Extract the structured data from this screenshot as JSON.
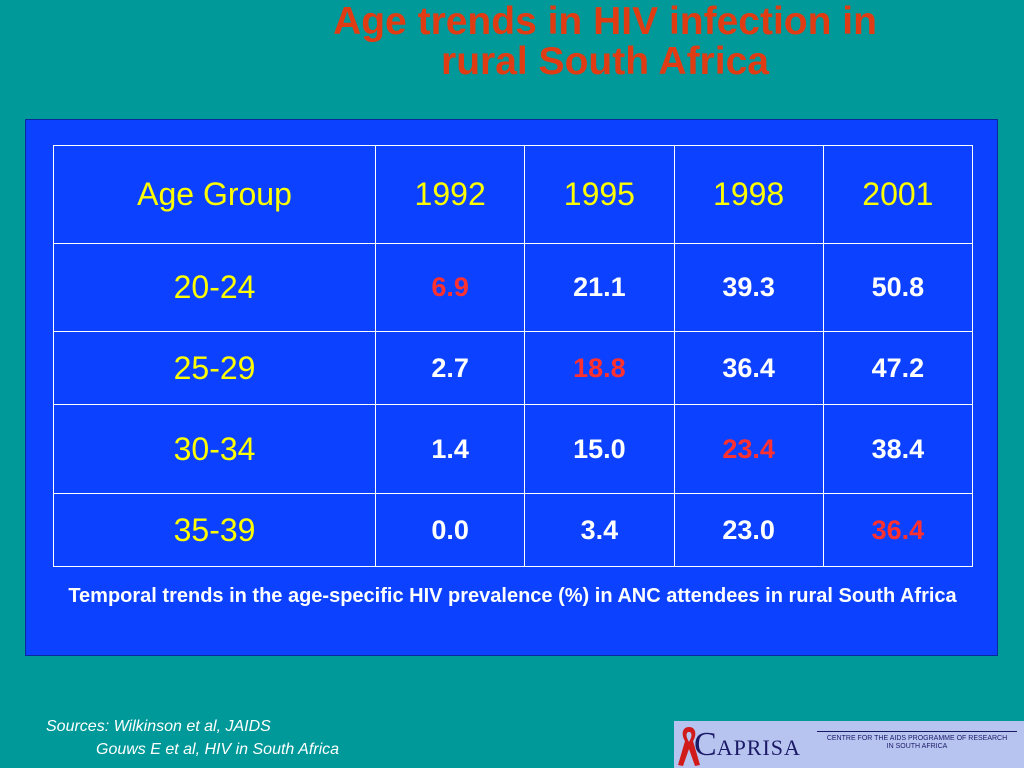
{
  "title_line1": "Age trends in HIV infection in",
  "title_line2": "rural South Africa",
  "table": {
    "headers": [
      "Age Group",
      "1992",
      "1995",
      "1998",
      "2001"
    ],
    "rows": [
      {
        "age": "20-24",
        "values": [
          "6.9",
          "21.1",
          "39.3",
          "50.8"
        ],
        "highlight_index": 0
      },
      {
        "age": "25-29",
        "values": [
          "2.7",
          "18.8",
          "36.4",
          "47.2"
        ],
        "highlight_index": 1
      },
      {
        "age": "30-34",
        "values": [
          "1.4",
          "15.0",
          "23.4",
          "38.4"
        ],
        "highlight_index": 2
      },
      {
        "age": "35-39",
        "values": [
          "0.0",
          "3.4",
          "23.0",
          "36.4"
        ],
        "highlight_index": 3
      }
    ]
  },
  "caption": "Temporal trends in the age-specific HIV prevalence (%) in ANC attendees in rural South Africa",
  "sources": {
    "line1": "Sources: Wilkinson et al, JAIDS",
    "line2": "Gouws E et al, HIV in South Africa"
  },
  "logo": {
    "name_initial": "C",
    "name_rest": "APRISA",
    "subtitle_line1": "CENTRE FOR THE AIDS PROGRAMME OF RESEARCH",
    "subtitle_line2": "IN SOUTH AFRICA"
  },
  "colors": {
    "background": "#009999",
    "panel": "#0c42ff",
    "title": "#e03c14",
    "header_text": "#ffff00",
    "value_text": "#ffffff",
    "highlight": "#ff3030"
  }
}
